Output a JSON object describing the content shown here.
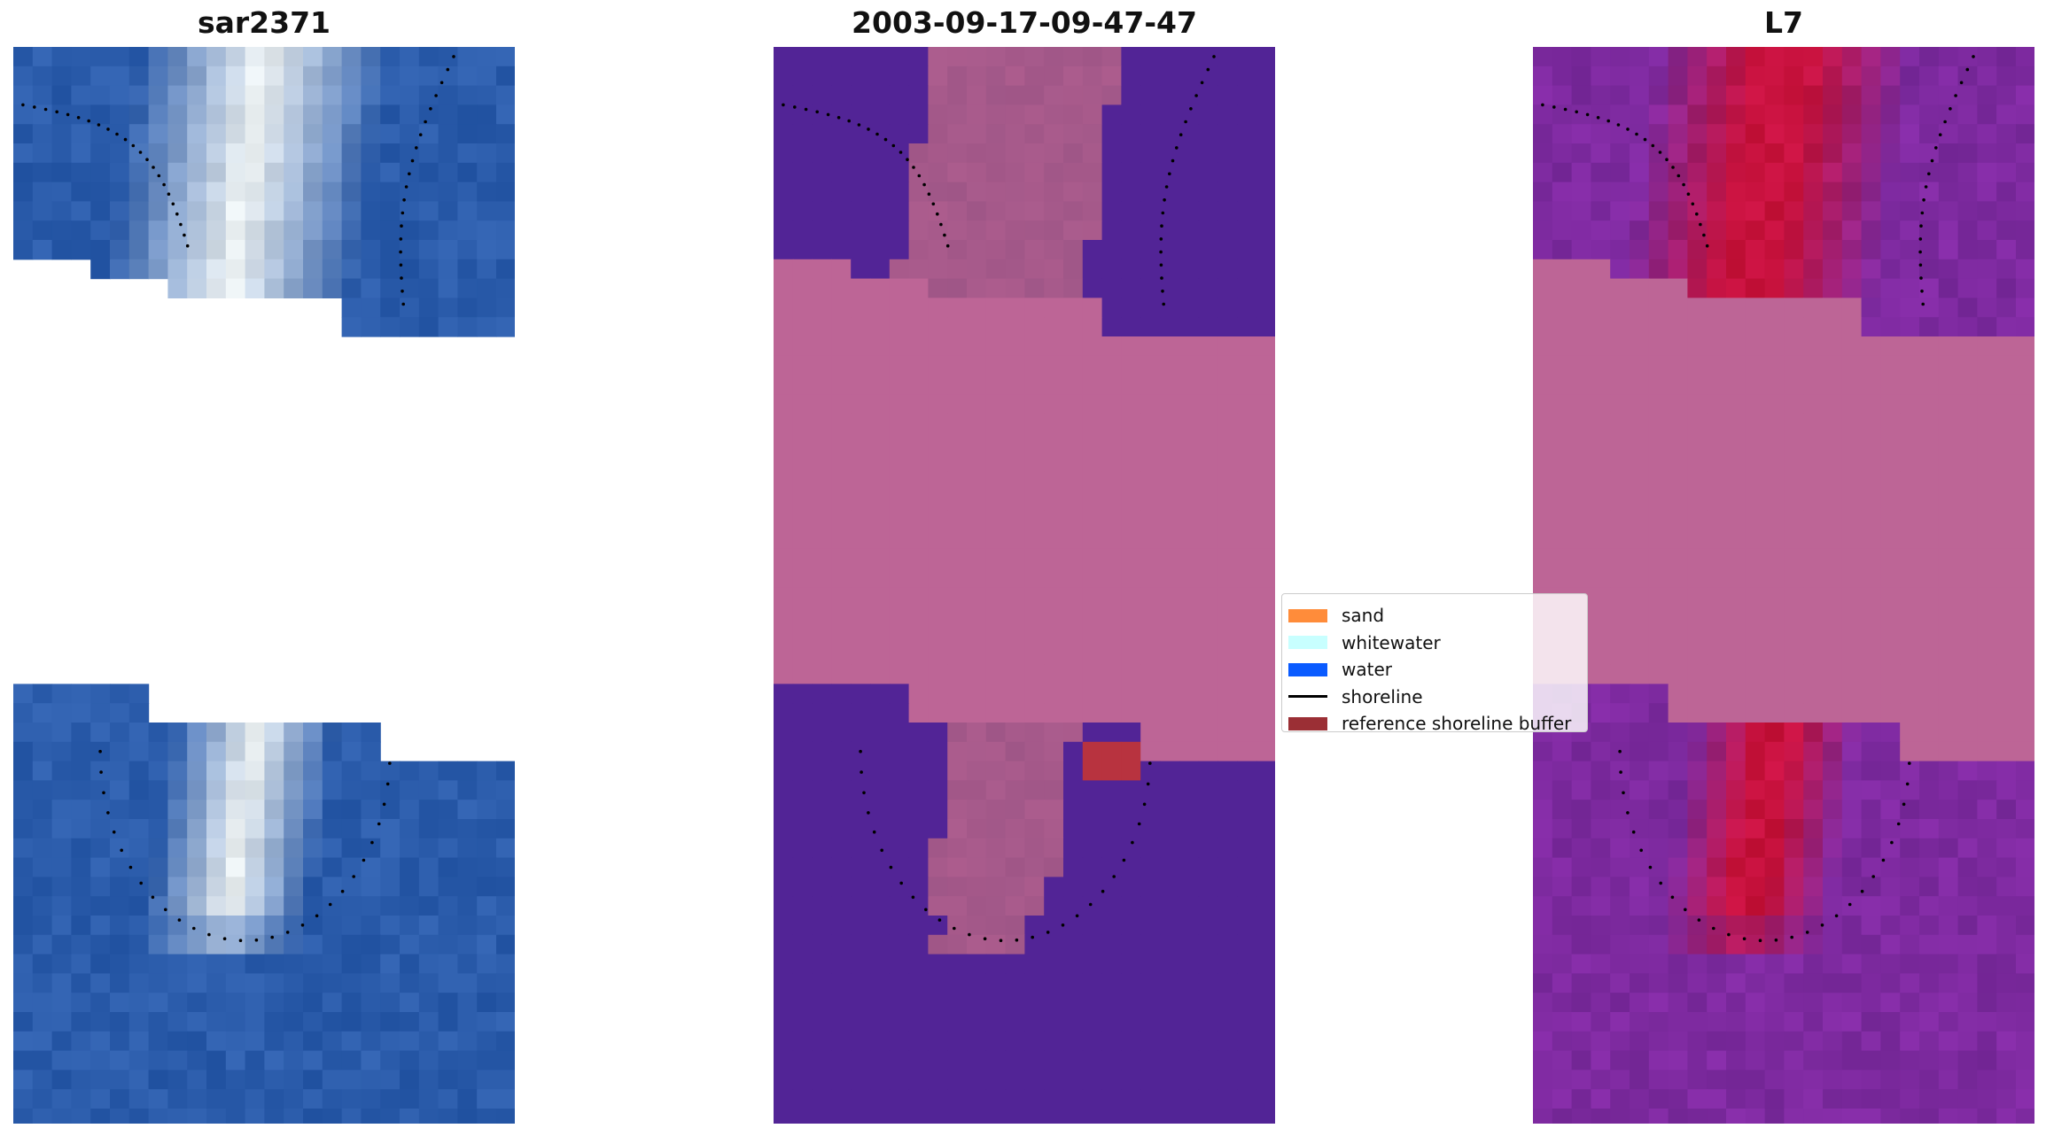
{
  "panels": [
    {
      "title": "sar2371",
      "kind": "rgb"
    },
    {
      "title": "2003-09-17-09-47-47",
      "kind": "classified"
    },
    {
      "title": "L7",
      "kind": "index"
    }
  ],
  "legend": {
    "items": [
      {
        "label": "sand",
        "color": "#ff8c3a",
        "kind": "patch"
      },
      {
        "label": "whitewater",
        "color": "#c8ffff",
        "kind": "patch"
      },
      {
        "label": "water",
        "color": "#0a5bff",
        "kind": "patch"
      },
      {
        "label": "shoreline",
        "color": "#000000",
        "kind": "line"
      },
      {
        "label": "reference shoreline buffer",
        "color": "#9b2f35",
        "kind": "patch"
      }
    ]
  },
  "colors": {
    "masked": "#bd6596",
    "water_class": "#522496",
    "whitewater_overlay": "#a35889",
    "buffer_overlay": "#b8333f",
    "rgb_water": "#2b5cab",
    "index_high": "#c8123e",
    "index_low": "#7e2aa0"
  }
}
